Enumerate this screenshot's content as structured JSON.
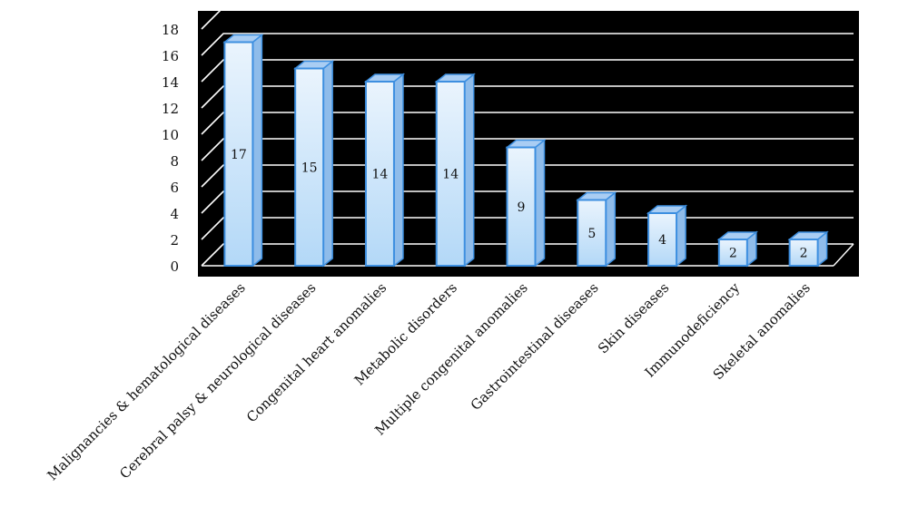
{
  "chart_data": {
    "type": "bar",
    "style": "3d-column",
    "categories": [
      "Malignancies & hematological diseases",
      "Cerebral palsy & neurological diseases",
      "Congenital heart anomalies",
      "Metabolic disorders",
      "Multiple congenital anomalies",
      "Gastrointestinal diseases",
      "Skin diseases",
      "Immunodeficiency",
      "Skeletal anomalies"
    ],
    "values": [
      17,
      15,
      14,
      14,
      9,
      5,
      4,
      2,
      2
    ],
    "data_labels": [
      "17",
      "15",
      "14",
      "14",
      "9",
      "5",
      "4",
      "2",
      "2"
    ],
    "title": "",
    "xlabel": "",
    "ylabel": "",
    "ylim": [
      0,
      18
    ],
    "yticks": [
      "0",
      "2",
      "4",
      "6",
      "8",
      "10",
      "12",
      "14",
      "16",
      "18"
    ],
    "grid": true,
    "legend": "none",
    "colors": {
      "plot_background": "#000000",
      "gridline": "#ffffff",
      "bar_fill_top": "#eaf4fd",
      "bar_fill_bottom": "#b3d8f7",
      "bar_edge": "#3d8fe0",
      "bar_side": "#8fbcea",
      "bar_cap": "#a9cdf3"
    }
  }
}
